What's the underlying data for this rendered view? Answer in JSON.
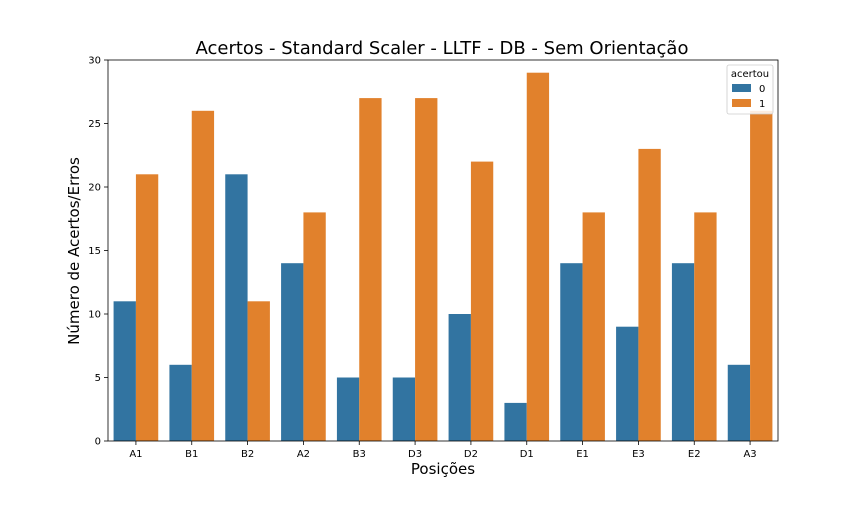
{
  "chart_data": {
    "type": "bar",
    "title": "Acertos - Standard Scaler - LLTF - DB - Sem Orientação",
    "xlabel": "Posições",
    "ylabel": "Número de Acertos/Erros",
    "categories": [
      "A1",
      "B1",
      "B2",
      "A2",
      "B3",
      "D3",
      "D2",
      "D1",
      "E1",
      "E3",
      "E2",
      "A3"
    ],
    "series": [
      {
        "name": "0",
        "color": "#3274a1",
        "values": [
          11,
          6,
          21,
          14,
          5,
          5,
          10,
          3,
          14,
          9,
          14,
          6
        ]
      },
      {
        "name": "1",
        "color": "#e1812c",
        "values": [
          21,
          26,
          11,
          18,
          27,
          27,
          22,
          29,
          18,
          23,
          18,
          26
        ]
      }
    ],
    "ylim": [
      0,
      30
    ],
    "yticks": [
      0,
      5,
      10,
      15,
      20,
      25,
      30
    ],
    "legend": {
      "title": "acertou",
      "placement": "top-right"
    },
    "grid": false
  }
}
